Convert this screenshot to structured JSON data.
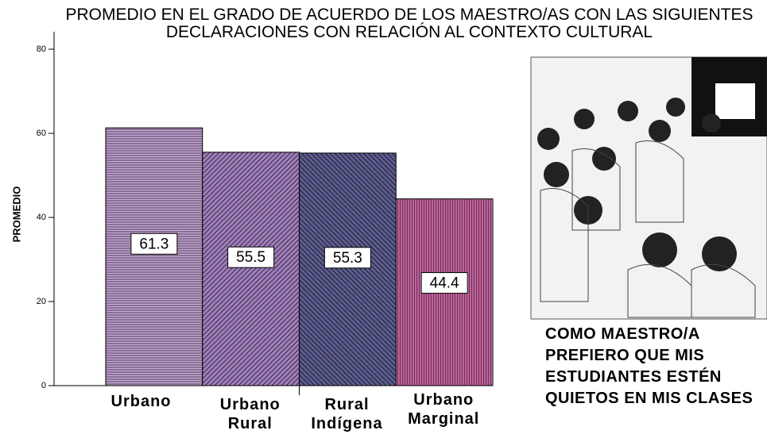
{
  "chart_data": {
    "type": "bar",
    "title": "PROMEDIO EN EL GRADO DE ACUERDO DE LOS MAESTRO/AS CON LAS SIGUIENTES DECLARACIONES CON RELACIÓN AL CONTEXTO CULTURAL",
    "y_label": "PROMEDIO",
    "categories": [
      "Urbano",
      "Urbano Rural",
      "Rural Indígena",
      "Urbano Marginal"
    ],
    "values": [
      61.3,
      55.5,
      55.3,
      44.4
    ],
    "colors": [
      "#c9a6dc",
      "#a07cbe",
      "#5c5c92",
      "#8e1f63"
    ],
    "ylim": [
      0,
      80
    ],
    "yticks": [
      0,
      20,
      40,
      60,
      80
    ],
    "annotation": "COMO MAESTRO/A PREFIERO QUE MIS ESTUDIANTES ESTÉN QUIETOS EN MIS CLASES"
  }
}
